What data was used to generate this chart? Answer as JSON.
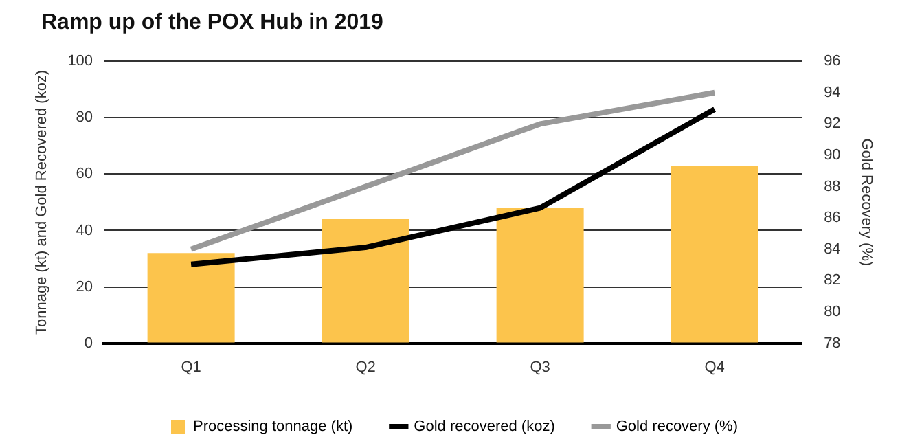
{
  "chart_data": {
    "type": "bar",
    "title": "Ramp up of the POX Hub in 2019",
    "ylabel": "Tonnage (kt) and Gold Recovered (koz)",
    "y2label": "Gold Recovery (%)",
    "categories": [
      "Q1",
      "Q2",
      "Q3",
      "Q4"
    ],
    "series": [
      {
        "name": "Processing tonnage (kt)",
        "color": "#fcc44c",
        "values": [
          32,
          44,
          48,
          63
        ]
      },
      {
        "name": "Gold recovered (koz)",
        "type": "line",
        "color": "#000000",
        "values": [
          28,
          34,
          48,
          83
        ]
      },
      {
        "name": "Gold recovery (%)",
        "type": "line",
        "color": "#999999",
        "axis": "y2",
        "values": [
          84,
          88,
          92,
          94
        ]
      }
    ],
    "ylim": [
      0,
      100
    ],
    "yticks": [
      0,
      20,
      40,
      60,
      80,
      100
    ],
    "y2lim": [
      78,
      96
    ],
    "y2ticks": [
      78,
      80,
      82,
      84,
      86,
      88,
      90,
      92,
      94,
      96
    ],
    "grid": "y",
    "legend": "bottom",
    "marker": "none"
  }
}
